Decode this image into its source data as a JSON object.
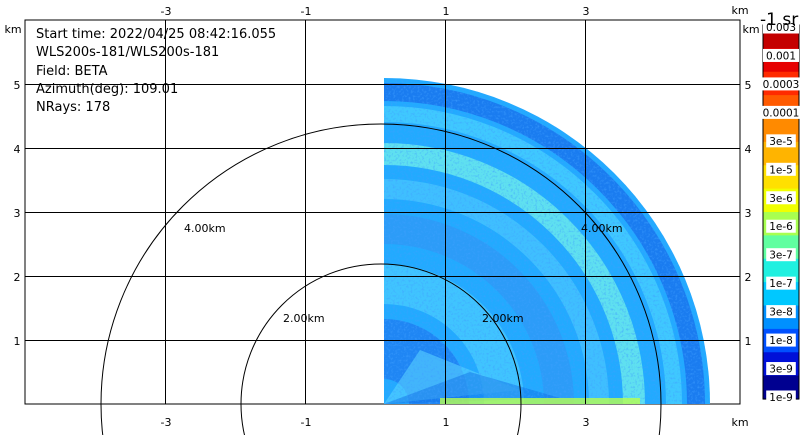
{
  "header": {
    "start_time": "Start time: 2022/04/25 08:42:16.055",
    "instrument": "WLS200s-181/WLS200s-181",
    "field": "Field: BETA",
    "azimuth": "Azimuth(deg): 109.01",
    "nrays": "NRays: 178"
  },
  "colorbar": {
    "title": "-1 sr",
    "labels": [
      "0.003",
      "0.001",
      "0.0003",
      "0.0001",
      "3e-5",
      "1e-5",
      "3e-6",
      "1e-6",
      "3e-7",
      "1e-7",
      "3e-8",
      "1e-8",
      "3e-9",
      "1e-9"
    ],
    "colors": [
      "#c40000",
      "#e60000",
      "#ff2a00",
      "#ff5a00",
      "#ff8a00",
      "#ffb400",
      "#ffe000",
      "#f0ff00",
      "#a8ff50",
      "#60ffa0",
      "#20f0e0",
      "#00c8ff",
      "#0090ff",
      "#0050ff",
      "#0010d8",
      "#000090"
    ]
  },
  "chart_data": {
    "type": "heatmap",
    "subtype": "polar RHI sector (range-height scan)",
    "field": "BETA",
    "units": "km",
    "x_ticks": [
      -3,
      -1,
      1,
      3
    ],
    "y_ticks": [
      1,
      2,
      3,
      4,
      5
    ],
    "axis_unit_label": "km",
    "range_rings": [
      {
        "radius_km": 2.0,
        "label": "2.00km"
      },
      {
        "radius_km": 4.0,
        "label": "4.00km"
      }
    ],
    "sector": {
      "elevation_deg": [
        0,
        90
      ],
      "max_range_km": 5.1
    },
    "grid": true,
    "colorscale": "log10 backscatter coefficient, jet",
    "colorbar_range": [
      "1e-9",
      "0.003"
    ]
  }
}
